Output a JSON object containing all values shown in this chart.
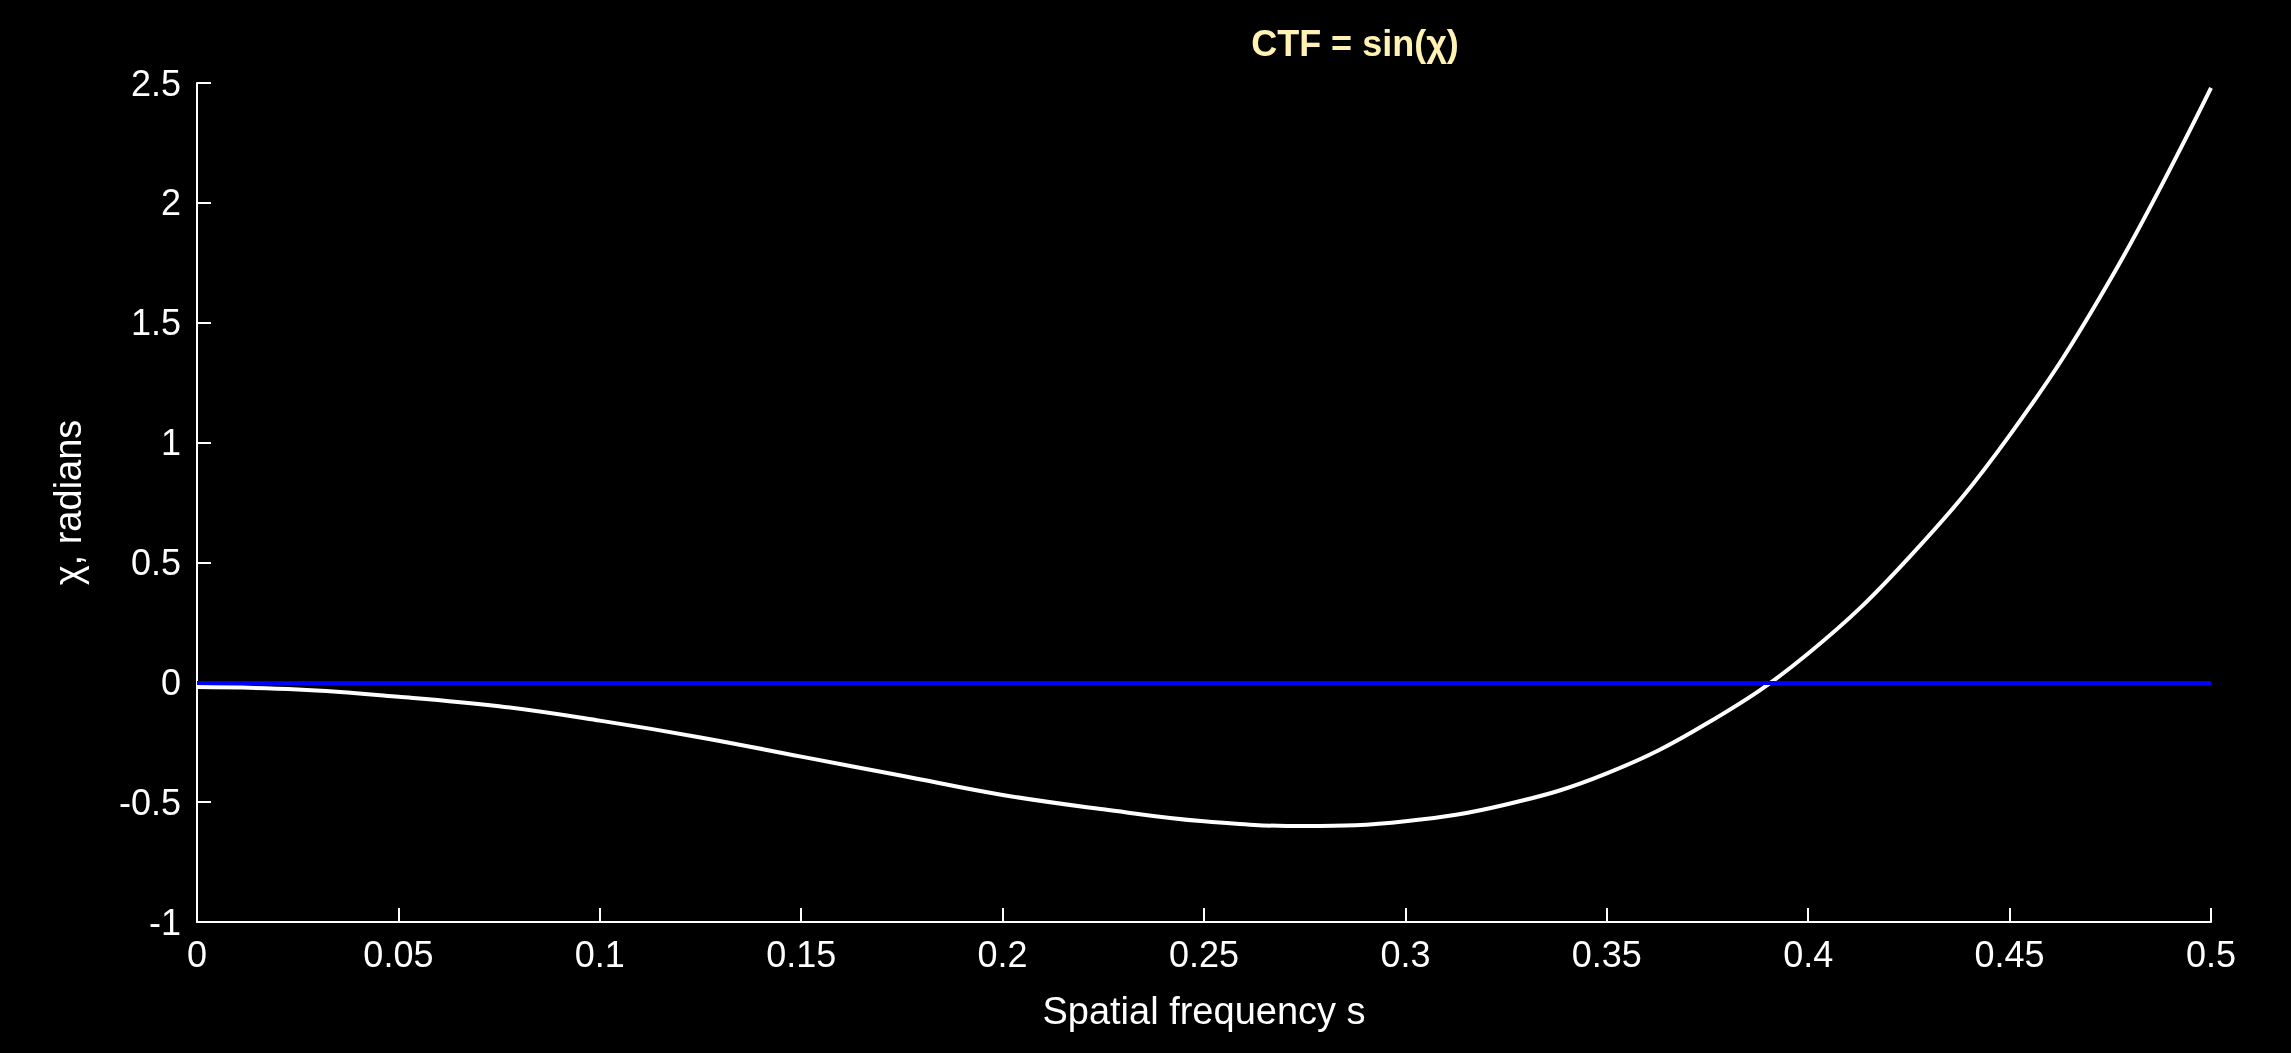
{
  "chart_data": {
    "type": "line",
    "title": "CTF = sin(χ)",
    "xlabel": "Spatial frequency s",
    "ylabel": "χ, radians",
    "x": [
      0,
      0.025,
      0.05,
      0.075,
      0.1,
      0.125,
      0.15,
      0.175,
      0.2,
      0.225,
      0.25,
      0.275,
      0.3,
      0.325,
      0.35,
      0.375,
      0.4,
      0.425,
      0.45,
      0.475,
      0.5
    ],
    "series": [
      {
        "color": "#ffffff",
        "values": [
          -0.02,
          -0.03,
          -0.06,
          -0.1,
          -0.16,
          -0.23,
          -0.31,
          -0.39,
          -0.47,
          -0.53,
          -0.58,
          -0.6,
          -0.58,
          -0.51,
          -0.38,
          -0.17,
          0.12,
          0.52,
          1.03,
          1.68,
          2.48
        ]
      }
    ],
    "xlim": [
      0,
      0.5
    ],
    "xticks": [
      0,
      0.05,
      0.1,
      0.15,
      0.2,
      0.25,
      0.3,
      0.35,
      0.4,
      0.45,
      0.5
    ],
    "ylim": [
      -1,
      2.5
    ],
    "yticks": [
      -1,
      -0.5,
      0,
      0.5,
      1,
      1.5,
      2,
      2.5
    ],
    "ref_lines": [
      {
        "axis": "y",
        "value": 0,
        "color": "#0000ff"
      }
    ],
    "grid": false,
    "marker": "none",
    "line_style": "solid"
  }
}
